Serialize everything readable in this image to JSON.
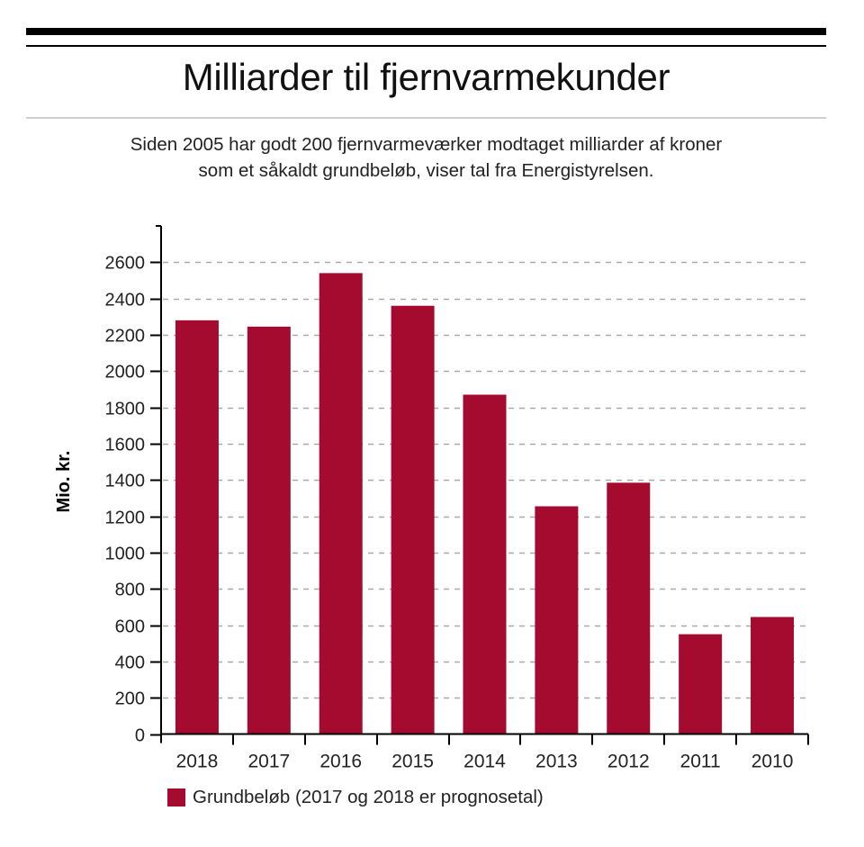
{
  "header": {
    "title": "Milliarder til fjernvarmekunder",
    "subtitle_line1": "Siden 2005 har godt 200 fjernvarmeværker modtaget milliarder af kroner",
    "subtitle_line2": "som et såkaldt grundbeløb, viser tal fra Energistyrelsen."
  },
  "colors": {
    "bar": "#A50B2E",
    "gridline": "#aaaaaa",
    "axis": "#000000"
  },
  "chart_data": {
    "type": "bar",
    "title": "Milliarder til fjernvarmekunder",
    "subtitle": "Siden 2005 har godt 200 fjernvarmeværker modtaget milliarder af kroner som et såkaldt grundbeløb, viser tal fra Energistyrelsen.",
    "xlabel": "",
    "ylabel": "Mio. kr.",
    "categories": [
      "2018",
      "2017",
      "2016",
      "2015",
      "2014",
      "2013",
      "2012",
      "2011",
      "2010"
    ],
    "series": [
      {
        "name": "Grundbeløb (2017 og 2018 er prognosetal)",
        "values": [
          2280,
          2245,
          2540,
          2360,
          1870,
          1255,
          1385,
          550,
          645
        ]
      }
    ],
    "ylim": [
      0,
      2800
    ],
    "yticks": [
      0,
      200,
      400,
      600,
      800,
      1000,
      1200,
      1400,
      1600,
      1800,
      2000,
      2200,
      2400,
      2600
    ],
    "grid": "horizontal-dashed",
    "legend_position": "bottom-left"
  },
  "legend": {
    "label": "Grundbeløb (2017 og 2018 er prognosetal)"
  }
}
